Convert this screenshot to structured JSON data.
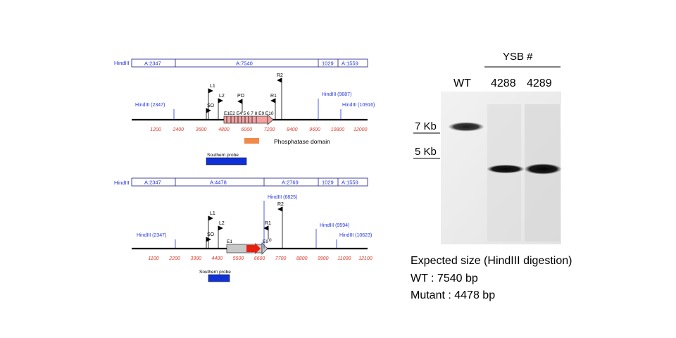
{
  "map_wt": {
    "hindiii_bar_label": "HindIII",
    "segments": [
      "A:2347",
      "A:7540",
      "1029",
      "A:1559"
    ],
    "primers": {
      "l1": "L1",
      "l2": "L2",
      "so": "SO",
      "po": "PO",
      "r1": "R1",
      "r2": "R2"
    },
    "exons": "E1E2 E4 5 6 7 8 E9 E10",
    "sites": {
      "left": "HindIII (2347)",
      "right1": "HindIII (9887)",
      "right2": "HindIII (10916)"
    },
    "ruler": [
      "1200",
      "2400",
      "3600",
      "4800",
      "6000",
      "7200",
      "8400",
      "9600",
      "10800",
      "12000"
    ],
    "domain_label": "Phosphatase domain",
    "probe_label": "Southern probe"
  },
  "map_mut": {
    "hindiii_bar_label": "HindIII",
    "segments": [
      "A:2347",
      "A:4478",
      "A:2769",
      "1029",
      "A:1559"
    ],
    "primers": {
      "l1": "L1",
      "l2": "L2",
      "so": "SO",
      "r1": "R1",
      "r2": "R2"
    },
    "exons": {
      "e1": "E1",
      "e9": "E9",
      "e10": "0"
    },
    "sites": {
      "left": "HindIII (2347)",
      "mid": "HindIII (6825)",
      "right1": "HindIII (9594)",
      "right2": "HindIII (10623)"
    },
    "ruler": [
      "1100",
      "2200",
      "3300",
      "4400",
      "5500",
      "6600",
      "7700",
      "8800",
      "9900",
      "11000",
      "12100"
    ],
    "probe_label": "Southern probe"
  },
  "gel": {
    "title": "YSB #",
    "lanes": [
      "WT",
      "4288",
      "4289"
    ],
    "markers": [
      "7 Kb",
      "5 Kb"
    ]
  },
  "expected": {
    "line1": "Expected size (HindIII digestion)",
    "line2": "WT : 7540 bp",
    "line3": "Mutant : 4478 bp"
  },
  "colors": {
    "blue": "#2233dd",
    "red_text": "#e03a2a",
    "pink": "#f4a0a0",
    "orange": "#f08a4a",
    "probe": "#1030d8",
    "gray_box": "#c8c8c8",
    "red_arrow": "#e82010"
  }
}
